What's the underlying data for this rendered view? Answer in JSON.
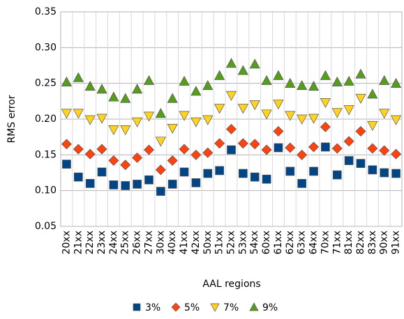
{
  "chart_data": {
    "type": "scatter",
    "y_label": "RMS error",
    "x_label": "AAL regions",
    "categories": [
      "20xx",
      "21xx",
      "22xx",
      "23xx",
      "24xx",
      "25xx",
      "26xx",
      "27xx",
      "30xx",
      "40xx",
      "41xx",
      "42xx",
      "50xx",
      "51xx",
      "52xx",
      "53xx",
      "54xx",
      "60xx",
      "61xx",
      "62xx",
      "63xx",
      "64xx",
      "70xx",
      "71xx",
      "81xx",
      "82xx",
      "83xx",
      "90xx",
      "91xx"
    ],
    "ylim": [
      0.05,
      0.35
    ],
    "yticks": [
      0.05,
      {
        "value": 0.1,
        "label": "0.10"
      },
      0.15,
      {
        "value": 0.2,
        "label": "0.20"
      },
      0.25,
      {
        "value": 0.3,
        "label": "0.30"
      },
      0.35
    ],
    "grid": true,
    "legend": "bottom",
    "series": [
      {
        "name": "3%",
        "color": "#004586",
        "marker": "square",
        "values": [
          0.137,
          0.119,
          0.11,
          0.126,
          0.108,
          0.107,
          0.109,
          0.115,
          0.099,
          0.109,
          0.126,
          0.111,
          0.124,
          0.128,
          0.157,
          0.124,
          0.119,
          0.116,
          0.16,
          0.127,
          0.11,
          0.127,
          0.161,
          0.122,
          0.142,
          0.138,
          0.129,
          0.125,
          0.124
        ]
      },
      {
        "name": "5%",
        "color": "#ff420e",
        "marker": "diamond",
        "values": [
          0.165,
          0.158,
          0.151,
          0.158,
          0.142,
          0.136,
          0.146,
          0.157,
          0.129,
          0.142,
          0.158,
          0.15,
          0.153,
          0.166,
          0.186,
          0.166,
          0.165,
          0.157,
          0.183,
          0.16,
          0.15,
          0.161,
          0.189,
          0.159,
          0.169,
          0.183,
          0.159,
          0.156,
          0.151
        ]
      },
      {
        "name": "7%",
        "color": "#ffd320",
        "marker": "triangle-down",
        "values": [
          0.208,
          0.208,
          0.199,
          0.201,
          0.185,
          0.185,
          0.196,
          0.204,
          0.169,
          0.187,
          0.205,
          0.196,
          0.199,
          0.215,
          0.233,
          0.215,
          0.22,
          0.207,
          0.221,
          0.205,
          0.2,
          0.201,
          0.223,
          0.209,
          0.213,
          0.229,
          0.191,
          0.208,
          0.199
        ]
      },
      {
        "name": "9%",
        "color": "#579d1c",
        "marker": "triangle-up",
        "values": [
          0.252,
          0.258,
          0.246,
          0.242,
          0.231,
          0.229,
          0.242,
          0.254,
          0.208,
          0.229,
          0.253,
          0.239,
          0.247,
          0.261,
          0.278,
          0.268,
          0.277,
          0.254,
          0.261,
          0.25,
          0.247,
          0.246,
          0.261,
          0.252,
          0.253,
          0.263,
          0.235,
          0.254,
          0.25
        ]
      }
    ]
  }
}
